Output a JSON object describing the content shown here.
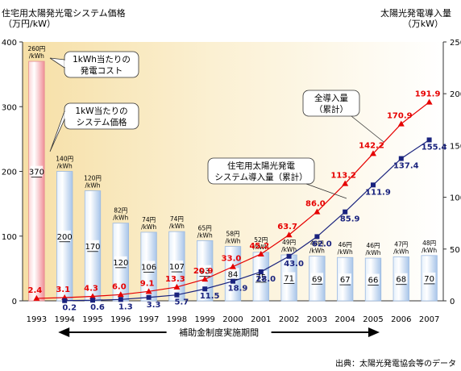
{
  "header": {
    "left_title": "住宅用太陽発光電システム価格",
    "left_unit": "（万円/kW）",
    "right_title": "太陽光発電導入量",
    "right_unit": "（万kW）"
  },
  "source": "出典：太陽光発電協会等のデータ",
  "subsidy_label": "補助金制度実施期間",
  "callouts": {
    "kwh_cost": [
      "1kWh当たりの",
      "発電コスト"
    ],
    "kw_price": [
      "1kW当たりの",
      "システム価格"
    ],
    "total": [
      "全導入量",
      "（累計）"
    ],
    "residential": [
      "住宅用太陽光発電",
      "システム導入量（累計）"
    ]
  },
  "colors": {
    "bar_first": "#f4a9ae",
    "bar_other": "#bcd4ee",
    "total_line": "#e60000",
    "residential_line": "#1a237e",
    "background_band": "#fbf0d2"
  },
  "chart_data": {
    "type": "bar+line",
    "categories": [
      "1993",
      "1994",
      "1995",
      "1996",
      "1997",
      "1998",
      "1999",
      "2000",
      "2001",
      "2002",
      "2003",
      "2004",
      "2005",
      "2006",
      "2007"
    ],
    "y_left": {
      "ylim": [
        0,
        400
      ],
      "ticks": [
        "0",
        "100",
        "200",
        "300",
        "400"
      ]
    },
    "y_right": {
      "ylim": [
        0,
        250
      ],
      "ticks": [
        "0",
        "50",
        "100",
        "150",
        "200",
        "250"
      ]
    },
    "bars": {
      "name": "1kW当たりのシステム価格",
      "values": [
        370,
        200,
        170,
        120,
        106,
        107,
        93,
        84,
        75,
        71,
        69,
        67,
        66,
        68,
        70
      ]
    },
    "kwh_cost_labels": [
      "260円/kWh",
      "140円/kWh",
      "120円/kWh",
      "82円/kWh",
      "74円/kWh",
      "74円/kWh",
      "65円/kWh",
      "58円/kWh",
      "52円/kWh",
      "49円/kWh",
      "48円/kWh",
      "46円/kWh",
      "46円/kWh",
      "47円/kWh",
      "48円/kWh"
    ],
    "series": [
      {
        "name": "全導入量（累計）",
        "axis": "right",
        "values": [
          2.4,
          3.1,
          4.3,
          6.0,
          9.1,
          13.3,
          20.9,
          33.0,
          45.2,
          63.7,
          86.0,
          113.2,
          142.2,
          170.9,
          191.9
        ]
      },
      {
        "name": "住宅用太陽光発電システム導入量（累計）",
        "axis": "right",
        "values": [
          null,
          0.2,
          0.6,
          1.3,
          3.3,
          5.7,
          11.5,
          18.9,
          28.0,
          43.0,
          62.0,
          85.9,
          111.9,
          137.4,
          155.4
        ]
      }
    ]
  }
}
